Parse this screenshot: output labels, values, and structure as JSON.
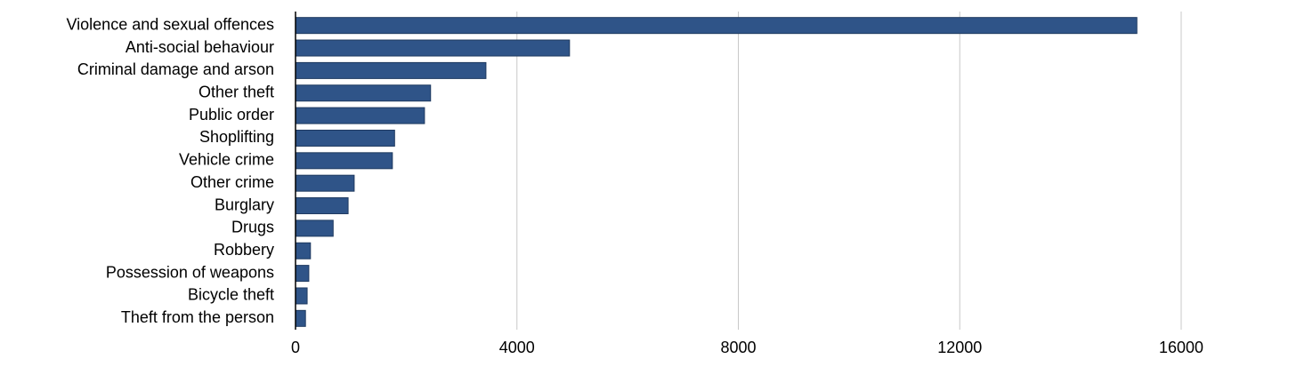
{
  "chart_data": {
    "type": "hbar",
    "categories": [
      "Violence and sexual offences",
      "Anti-social behaviour",
      "Criminal damage and arson",
      "Other theft",
      "Public order",
      "Shoplifting",
      "Vehicle crime",
      "Other crime",
      "Burglary",
      "Drugs",
      "Robbery",
      "Possession of weapons",
      "Bicycle theft",
      "Theft from the person"
    ],
    "values": [
      15200,
      4950,
      3440,
      2440,
      2330,
      1790,
      1750,
      1060,
      950,
      680,
      270,
      240,
      210,
      180
    ],
    "color": "#2f5488",
    "xlim": [
      0,
      16000
    ],
    "xticks": [
      0,
      4000,
      8000,
      12000,
      16000
    ],
    "grid": true
  }
}
